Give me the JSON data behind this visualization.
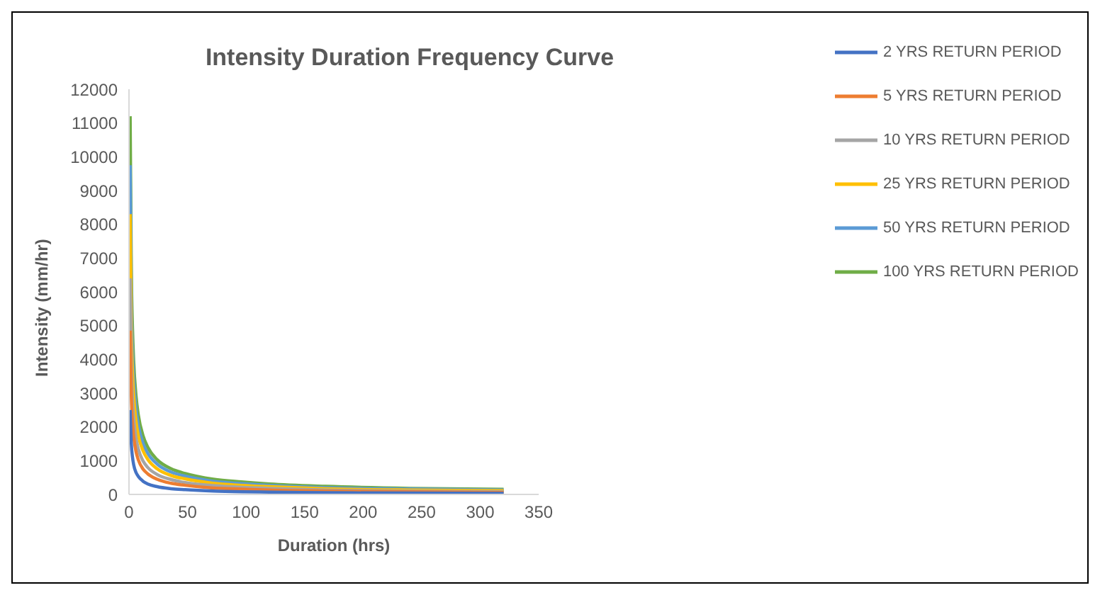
{
  "chart_data": {
    "type": "line",
    "title": "Intensity Duration Frequency Curve",
    "xlabel": "Duration (hrs)",
    "ylabel": "Intensity (mm/hr)",
    "x": [
      1,
      2,
      3,
      4,
      6,
      8,
      12,
      16,
      24,
      36,
      48,
      72,
      96,
      120,
      168,
      240,
      320
    ],
    "series": [
      {
        "name": "2 YRS RETURN PERIOD",
        "color": "#4472c4",
        "values": [
          2500,
          1490,
          1100,
          880,
          650,
          530,
          390,
          310,
          230,
          170,
          140,
          100,
          80,
          70,
          50,
          40,
          30
        ]
      },
      {
        "name": "5 YRS RETURN PERIOD",
        "color": "#ed7d31",
        "values": [
          4850,
          2890,
          2130,
          1720,
          1270,
          1020,
          750,
          610,
          450,
          330,
          270,
          190,
          160,
          130,
          100,
          80,
          60
        ]
      },
      {
        "name": "10 YRS RETURN PERIOD",
        "color": "#a5a5a5",
        "values": [
          6400,
          3810,
          2810,
          2270,
          1670,
          1340,
          990,
          800,
          590,
          440,
          350,
          260,
          210,
          180,
          130,
          100,
          80
        ]
      },
      {
        "name": "25 YRS RETURN PERIOD",
        "color": "#ffc000",
        "values": [
          8300,
          4940,
          3640,
          2940,
          2170,
          1740,
          1290,
          1040,
          760,
          560,
          460,
          330,
          270,
          230,
          170,
          130,
          110
        ]
      },
      {
        "name": "50 YRS RETURN PERIOD",
        "color": "#5b9bd5",
        "values": [
          9750,
          5800,
          4280,
          3450,
          2540,
          2050,
          1510,
          1220,
          900,
          660,
          540,
          390,
          320,
          270,
          200,
          160,
          130
        ]
      },
      {
        "name": "100 YRS RETURN PERIOD",
        "color": "#70ad47",
        "values": [
          11200,
          6660,
          4920,
          3960,
          2920,
          2350,
          1740,
          1400,
          1030,
          760,
          620,
          450,
          370,
          310,
          240,
          180,
          150
        ]
      }
    ],
    "xlim": [
      0,
      350
    ],
    "xticks": [
      0,
      50,
      100,
      150,
      200,
      250,
      300,
      350
    ],
    "ylim": [
      0,
      12000
    ],
    "yticks": [
      0,
      1000,
      2000,
      3000,
      4000,
      5000,
      6000,
      7000,
      8000,
      9000,
      10000,
      11000,
      12000
    ],
    "grid": false,
    "legend": "right",
    "marker": "none",
    "line_style": "solid"
  }
}
